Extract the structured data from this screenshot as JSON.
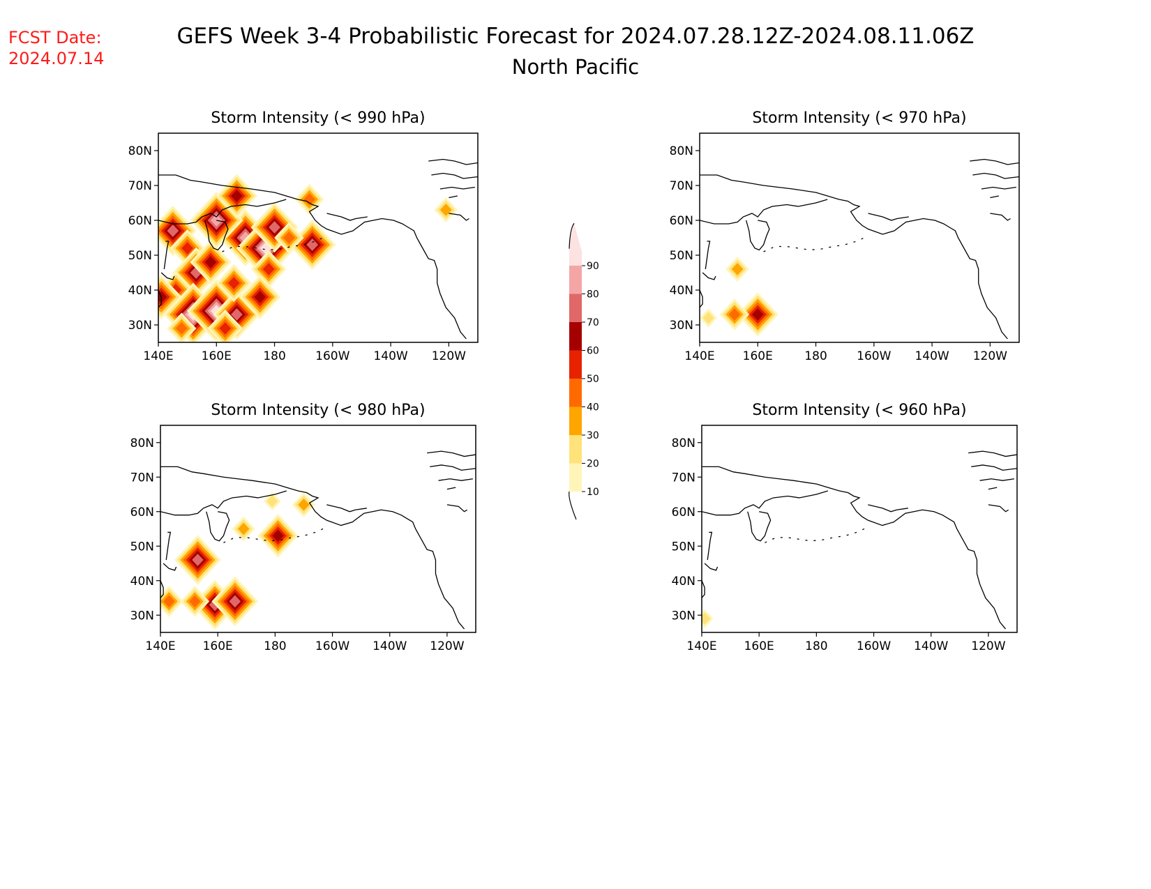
{
  "header": {
    "fcst_label": "FCST Date:",
    "fcst_date": "2024.07.14",
    "title": "GEFS Week 3-4 Probabilistic Forecast for 2024.07.28.12Z-2024.08.11.06Z",
    "subtitle": "North Pacific"
  },
  "axes": {
    "lon_ticks": [
      "140E",
      "160E",
      "180",
      "160W",
      "140W",
      "120W"
    ],
    "lat_ticks": [
      "80N",
      "70N",
      "60N",
      "50N",
      "40N",
      "30N"
    ]
  },
  "colorbar": {
    "levels": [
      "10",
      "20",
      "30",
      "40",
      "50",
      "60",
      "70",
      "80",
      "90"
    ],
    "colors": [
      "#fff5b8",
      "#ffe27a",
      "#ffa500",
      "#ff6a00",
      "#e62200",
      "#a50000",
      "#e06868",
      "#f4a6a6",
      "#fde2e2"
    ]
  },
  "panels": [
    {
      "title": "Storm Intensity (< 990 hPa)",
      "blobs": [
        {
          "lon": 145,
          "lat": 57,
          "level": 6
        },
        {
          "lon": 150,
          "lat": 52,
          "level": 4
        },
        {
          "lon": 153,
          "lat": 45,
          "level": 6
        },
        {
          "lon": 158,
          "lat": 48,
          "level": 5
        },
        {
          "lon": 146,
          "lat": 40,
          "level": 4
        },
        {
          "lon": 141,
          "lat": 38,
          "level": 5
        },
        {
          "lon": 152,
          "lat": 33,
          "level": 8
        },
        {
          "lon": 160,
          "lat": 34,
          "level": 8
        },
        {
          "lon": 167,
          "lat": 33,
          "level": 6
        },
        {
          "lon": 163,
          "lat": 29,
          "level": 4
        },
        {
          "lon": 170,
          "lat": 55,
          "level": 7
        },
        {
          "lon": 177,
          "lat": 52,
          "level": 8
        },
        {
          "lon": 180,
          "lat": 58,
          "level": 6
        },
        {
          "lon": 178,
          "lat": 46,
          "level": 4
        },
        {
          "lon": 175,
          "lat": 38,
          "level": 5
        },
        {
          "lon": 166,
          "lat": 42,
          "level": 4
        },
        {
          "lon": 160,
          "lat": 60,
          "level": 7
        },
        {
          "lon": 167,
          "lat": 67,
          "level": 5
        },
        {
          "lon": 193,
          "lat": 53,
          "level": 6
        },
        {
          "lon": 192,
          "lat": 66,
          "level": 3
        },
        {
          "lon": 185,
          "lat": 55,
          "level": 3
        },
        {
          "lon": 148,
          "lat": 29,
          "level": 3
        },
        {
          "lon": 239,
          "lat": 63,
          "level": 2
        }
      ]
    },
    {
      "title": "Storm Intensity (< 970 hPa)",
      "blobs": [
        {
          "lon": 160,
          "lat": 33,
          "level": 5
        },
        {
          "lon": 152,
          "lat": 33,
          "level": 3
        },
        {
          "lon": 153,
          "lat": 46,
          "level": 2
        },
        {
          "lon": 143,
          "lat": 32,
          "level": 1
        }
      ]
    },
    {
      "title": "Storm Intensity (< 980 hPa)",
      "blobs": [
        {
          "lon": 153,
          "lat": 46,
          "level": 6
        },
        {
          "lon": 159,
          "lat": 33,
          "level": 6
        },
        {
          "lon": 166,
          "lat": 34,
          "level": 6
        },
        {
          "lon": 143,
          "lat": 34,
          "level": 3
        },
        {
          "lon": 152,
          "lat": 34,
          "level": 3
        },
        {
          "lon": 181,
          "lat": 53,
          "level": 5
        },
        {
          "lon": 169,
          "lat": 55,
          "level": 2
        },
        {
          "lon": 190,
          "lat": 62,
          "level": 2
        },
        {
          "lon": 179,
          "lat": 63,
          "level": 1
        }
      ]
    },
    {
      "title": "Storm Intensity (< 960 hPa)",
      "blobs": [
        {
          "lon": 141,
          "lat": 29,
          "level": 1
        }
      ]
    }
  ]
}
